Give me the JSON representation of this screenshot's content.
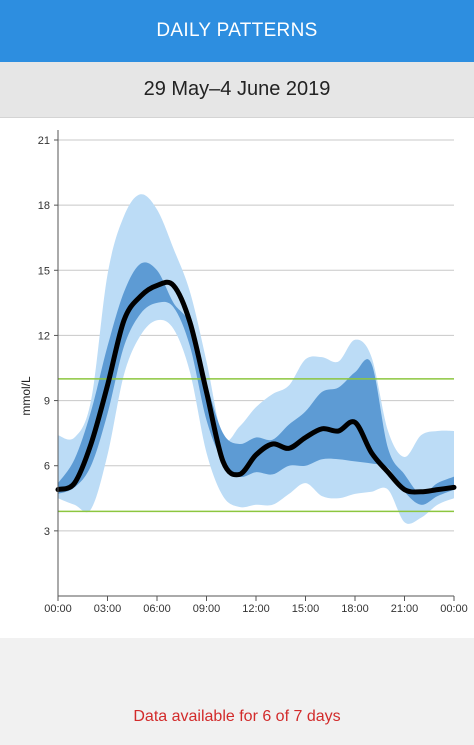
{
  "header": {
    "title": "DAILY PATTERNS"
  },
  "date_range": "29 May–4 June 2019",
  "footer": {
    "message": "Data available for 6 of 7 days"
  },
  "colors": {
    "header_bg": "#2d8ee0",
    "outer_band": "#bcdcf6",
    "inner_band": "#5d9bd4",
    "median_line": "#000000",
    "target_line": "#8cc63f",
    "footer_text": "#d22b2b"
  },
  "chart_data": {
    "type": "area",
    "title": "",
    "xlabel": "",
    "ylabel": "mmol/L",
    "xlim": [
      0,
      24
    ],
    "ylim": [
      0,
      21
    ],
    "grid": true,
    "x_ticks": [
      0,
      3,
      6,
      9,
      12,
      15,
      18,
      21,
      24
    ],
    "x_tick_labels": [
      "00:00",
      "03:00",
      "06:00",
      "09:00",
      "12:00",
      "15:00",
      "18:00",
      "21:00",
      "00:00"
    ],
    "y_ticks": [
      3,
      6,
      9,
      12,
      15,
      18,
      21
    ],
    "y_tick_labels": [
      "3",
      "6",
      "9",
      "12",
      "15",
      "18",
      "21"
    ],
    "target_range": [
      3.9,
      10.0
    ],
    "x": [
      0,
      1,
      2,
      3,
      4,
      5,
      6,
      7,
      8,
      9,
      10,
      11,
      12,
      13,
      14,
      15,
      16,
      17,
      18,
      19,
      20,
      21,
      22,
      23,
      24
    ],
    "series": [
      {
        "role": "p10",
        "values": [
          4.5,
          4.2,
          4.0,
          6.5,
          10.2,
          12.0,
          12.7,
          12.3,
          10.3,
          6.6,
          4.6,
          4.1,
          4.2,
          4.2,
          4.7,
          5.2,
          4.6,
          4.5,
          4.7,
          4.8,
          4.9,
          3.4,
          3.6,
          4.2,
          4.5
        ]
      },
      {
        "role": "p25",
        "values": [
          4.7,
          5.0,
          6.0,
          8.4,
          11.5,
          13.0,
          13.5,
          13.3,
          11.5,
          8.1,
          6.2,
          5.5,
          5.7,
          5.6,
          6.0,
          6.0,
          6.3,
          6.3,
          6.2,
          6.1,
          5.9,
          4.8,
          4.2,
          4.6,
          4.9
        ]
      },
      {
        "role": "median",
        "values": [
          4.9,
          5.2,
          7.0,
          9.7,
          12.7,
          13.8,
          14.3,
          14.3,
          12.6,
          9.4,
          6.2,
          5.6,
          6.5,
          7.0,
          6.8,
          7.3,
          7.7,
          7.6,
          8.0,
          6.6,
          5.7,
          4.9,
          4.8,
          4.9,
          5.0
        ]
      },
      {
        "role": "p75",
        "values": [
          5.2,
          6.3,
          8.5,
          11.5,
          14.0,
          15.3,
          15.0,
          13.5,
          12.5,
          9.8,
          7.5,
          7.0,
          7.3,
          7.2,
          7.9,
          8.5,
          9.4,
          9.6,
          10.3,
          10.7,
          6.8,
          5.6,
          4.7,
          5.2,
          5.5
        ]
      },
      {
        "role": "p90",
        "values": [
          7.4,
          7.3,
          9.0,
          14.8,
          17.5,
          18.5,
          17.8,
          16.0,
          14.0,
          10.8,
          7.3,
          7.8,
          8.7,
          9.3,
          9.7,
          10.9,
          11.0,
          10.8,
          11.8,
          11.0,
          7.6,
          6.4,
          7.4,
          7.6,
          7.6
        ]
      }
    ]
  }
}
